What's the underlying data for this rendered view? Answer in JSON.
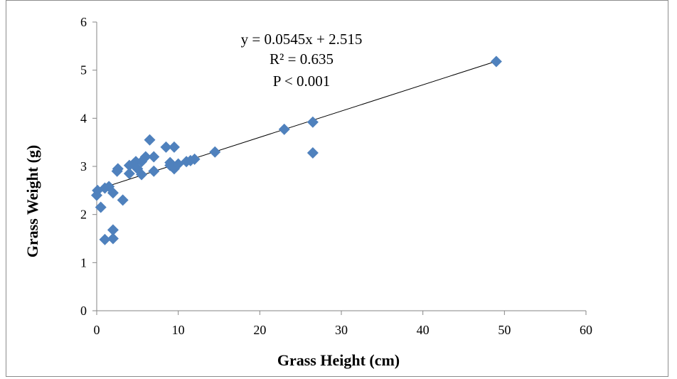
{
  "chart_data": {
    "type": "scatter",
    "title": "",
    "xlabel": "Grass Height (cm)",
    "ylabel": "Grass Weight (g)",
    "xlim": [
      0,
      60
    ],
    "ylim": [
      0,
      6
    ],
    "x_ticks": [
      "0",
      "10",
      "20",
      "30",
      "40",
      "50",
      "60"
    ],
    "y_ticks": [
      "0",
      "1",
      "2",
      "3",
      "4",
      "5",
      "6"
    ],
    "grid": false,
    "legend": "none",
    "marker": "diamond",
    "marker_color": "#4f81bd",
    "points": [
      [
        0.0,
        2.4
      ],
      [
        0.1,
        2.5
      ],
      [
        0.5,
        2.15
      ],
      [
        1.0,
        1.48
      ],
      [
        1.0,
        2.55
      ],
      [
        1.5,
        2.58
      ],
      [
        2.0,
        2.45
      ],
      [
        2.0,
        1.5
      ],
      [
        2.0,
        1.68
      ],
      [
        2.5,
        2.9
      ],
      [
        2.6,
        2.95
      ],
      [
        3.2,
        2.3
      ],
      [
        4.0,
        2.85
      ],
      [
        4.0,
        3.02
      ],
      [
        4.5,
        3.05
      ],
      [
        4.8,
        3.1
      ],
      [
        5.0,
        2.95
      ],
      [
        5.5,
        2.83
      ],
      [
        5.5,
        3.1
      ],
      [
        6.0,
        3.2
      ],
      [
        6.5,
        3.55
      ],
      [
        7.0,
        2.9
      ],
      [
        7.0,
        3.2
      ],
      [
        8.5,
        3.4
      ],
      [
        9.0,
        3.02
      ],
      [
        9.0,
        3.08
      ],
      [
        9.5,
        2.95
      ],
      [
        9.5,
        3.4
      ],
      [
        10.0,
        3.05
      ],
      [
        11.0,
        3.1
      ],
      [
        11.5,
        3.12
      ],
      [
        12.0,
        3.15
      ],
      [
        14.5,
        3.3
      ],
      [
        23.0,
        3.77
      ],
      [
        26.5,
        3.92
      ],
      [
        26.5,
        3.28
      ],
      [
        49.0,
        5.18
      ]
    ],
    "trendline": {
      "slope": 0.0545,
      "intercept": 2.515,
      "x_range": [
        0,
        49
      ],
      "color": "#000000"
    },
    "annotations": [
      "y = 0.0545x + 2.515",
      "R² = 0.635",
      "P < 0.001"
    ]
  }
}
